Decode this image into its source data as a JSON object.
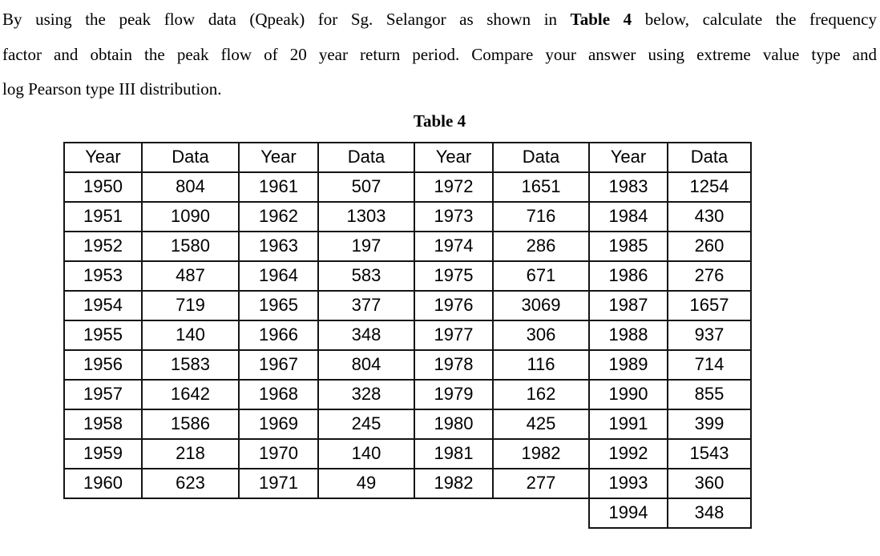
{
  "page": {
    "background_color": "#ffffff",
    "text_color": "#000000"
  },
  "question": {
    "line1_before": "By using the peak flow data (Qpeak) for Sg. Selangor as shown in ",
    "line1_bold": "Table 4",
    "line1_after": " below, calculate the frequency",
    "line2": "factor and obtain the peak flow of 20 year return period. Compare your answer using extreme value type and",
    "line3": "log Pearson type III distribution."
  },
  "table": {
    "caption": "Table 4",
    "border_color": "#141414",
    "headers": [
      "Year",
      "Data",
      "Year",
      "Data",
      "Year",
      "Data",
      "Year",
      "Data"
    ],
    "rows": [
      [
        "1950",
        "804",
        "1961",
        "507",
        "1972",
        "1651",
        "1983",
        "1254"
      ],
      [
        "1951",
        "1090",
        "1962",
        "1303",
        "1973",
        "716",
        "1984",
        "430"
      ],
      [
        "1952",
        "1580",
        "1963",
        "197",
        "1974",
        "286",
        "1985",
        "260"
      ],
      [
        "1953",
        "487",
        "1964",
        "583",
        "1975",
        "671",
        "1986",
        "276"
      ],
      [
        "1954",
        "719",
        "1965",
        "377",
        "1976",
        "3069",
        "1987",
        "1657"
      ],
      [
        "1955",
        "140",
        "1966",
        "348",
        "1977",
        "306",
        "1988",
        "937"
      ],
      [
        "1956",
        "1583",
        "1967",
        "804",
        "1978",
        "116",
        "1989",
        "714"
      ],
      [
        "1957",
        "1642",
        "1968",
        "328",
        "1979",
        "162",
        "1990",
        "855"
      ],
      [
        "1958",
        "1586",
        "1969",
        "245",
        "1980",
        "425",
        "1991",
        "399"
      ],
      [
        "1959",
        "218",
        "1970",
        "140",
        "1981",
        "1982",
        "1992",
        "1543"
      ],
      [
        "1960",
        "623",
        "1971",
        "49",
        "1982",
        "277",
        "1993",
        "360"
      ],
      [
        "",
        "",
        "",
        "",
        "",
        "",
        "1994",
        "348"
      ]
    ]
  }
}
